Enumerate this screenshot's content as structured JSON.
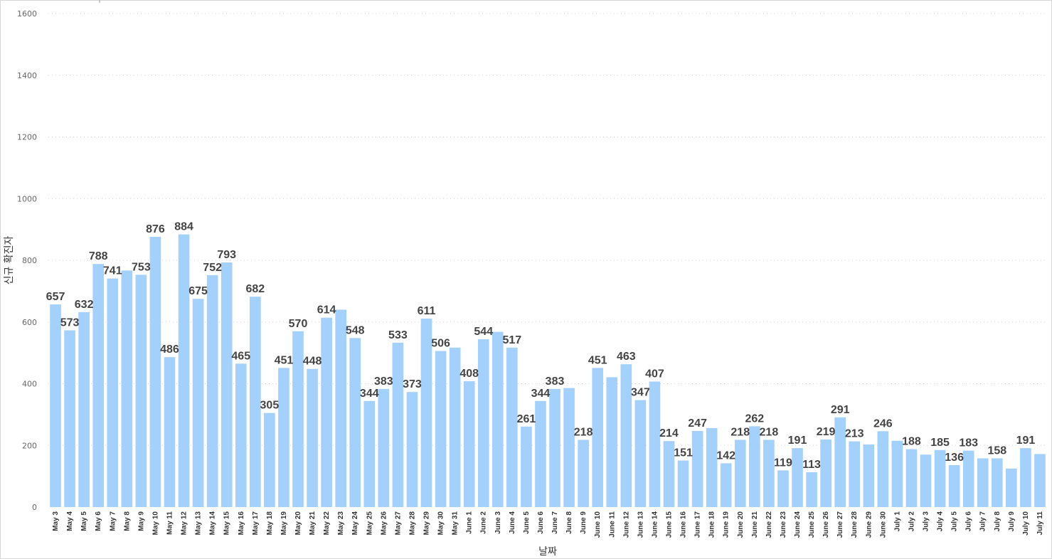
{
  "chart_data": {
    "type": "bar",
    "title": "",
    "xlabel": "날짜",
    "ylabel": "신규 확진자",
    "ylim": [
      0,
      1600
    ],
    "yticks": [
      0,
      200,
      400,
      600,
      800,
      1000,
      1200,
      1400,
      1600
    ],
    "grid": true,
    "colors": {
      "bar": "#a3d1fc",
      "highlight": "#1a8cff"
    },
    "highlight_index": 70,
    "categories": [
      "May 3",
      "May 4",
      "May 5",
      "May 6",
      "May 7",
      "May 8",
      "May 9",
      "May 10",
      "May 11",
      "May 12",
      "May 13",
      "May 14",
      "May 15",
      "May 16",
      "May 17",
      "May 18",
      "May 19",
      "May 20",
      "May 21",
      "May 22",
      "May 23",
      "May 24",
      "May 25",
      "May 26",
      "May 27",
      "May 28",
      "May 29",
      "May 30",
      "May 31",
      "June 1",
      "June 2",
      "June 3",
      "June 4",
      "June 5",
      "June 6",
      "June 7",
      "June 8",
      "June 9",
      "June 10",
      "June 11",
      "June 12",
      "June 13",
      "June 14",
      "June 15",
      "June 16",
      "June 17",
      "June 18",
      "June 19",
      "June 20",
      "June 21",
      "June 22",
      "June 23",
      "June 24",
      "June 25",
      "June 26",
      "June 27",
      "June 28",
      "June 29",
      "June 30",
      "July 1",
      "July 2",
      "July 3",
      "July 4",
      "July 5",
      "July 6",
      "July 7",
      "July 8",
      "July 9",
      "July 10",
      "July 11"
    ],
    "values": [
      657,
      573,
      632,
      788,
      741,
      767,
      753,
      876,
      486,
      884,
      675,
      752,
      793,
      465,
      682,
      305,
      451,
      570,
      448,
      614,
      640,
      548,
      344,
      383,
      533,
      373,
      611,
      506,
      517,
      408,
      544,
      568,
      517,
      261,
      344,
      383,
      386,
      218,
      451,
      421,
      463,
      347,
      407,
      214,
      151,
      247,
      256,
      142,
      218,
      262,
      218,
      119,
      191,
      113,
      219,
      291,
      213,
      203,
      246,
      215,
      188,
      170,
      185,
      136,
      183,
      158,
      158,
      125,
      191,
      172
    ],
    "data_labels": [
      {
        "index": 0,
        "text": "657"
      },
      {
        "index": 1,
        "text": "573"
      },
      {
        "index": 2,
        "text": "632"
      },
      {
        "index": 3,
        "text": "788"
      },
      {
        "index": 4,
        "text": "741"
      },
      {
        "index": 6,
        "text": "753"
      },
      {
        "index": 7,
        "text": "876"
      },
      {
        "index": 8,
        "text": "486"
      },
      {
        "index": 9,
        "text": "884"
      },
      {
        "index": 10,
        "text": "675"
      },
      {
        "index": 11,
        "text": "752"
      },
      {
        "index": 12,
        "text": "793"
      },
      {
        "index": 13,
        "text": "465"
      },
      {
        "index": 14,
        "text": "682"
      },
      {
        "index": 15,
        "text": "305"
      },
      {
        "index": 16,
        "text": "451"
      },
      {
        "index": 17,
        "text": "570"
      },
      {
        "index": 18,
        "text": "448"
      },
      {
        "index": 19,
        "text": "614"
      },
      {
        "index": 21,
        "text": "548"
      },
      {
        "index": 22,
        "text": "344"
      },
      {
        "index": 23,
        "text": "383"
      },
      {
        "index": 24,
        "text": "533"
      },
      {
        "index": 25,
        "text": "373"
      },
      {
        "index": 26,
        "text": "611"
      },
      {
        "index": 27,
        "text": "506"
      },
      {
        "index": 29,
        "text": "408"
      },
      {
        "index": 30,
        "text": "544"
      },
      {
        "index": 32,
        "text": "517"
      },
      {
        "index": 33,
        "text": "261"
      },
      {
        "index": 34,
        "text": "344"
      },
      {
        "index": 35,
        "text": "383"
      },
      {
        "index": 37,
        "text": "218"
      },
      {
        "index": 38,
        "text": "451"
      },
      {
        "index": 40,
        "text": "463"
      },
      {
        "index": 41,
        "text": "347"
      },
      {
        "index": 42,
        "text": "407"
      },
      {
        "index": 43,
        "text": "214"
      },
      {
        "index": 44,
        "text": "151"
      },
      {
        "index": 45,
        "text": "247"
      },
      {
        "index": 47,
        "text": "142"
      },
      {
        "index": 48,
        "text": "218"
      },
      {
        "index": 49,
        "text": "262"
      },
      {
        "index": 50,
        "text": "218"
      },
      {
        "index": 51,
        "text": "119"
      },
      {
        "index": 52,
        "text": "191"
      },
      {
        "index": 53,
        "text": "113"
      },
      {
        "index": 54,
        "text": "219"
      },
      {
        "index": 55,
        "text": "291"
      },
      {
        "index": 56,
        "text": "213"
      },
      {
        "index": 58,
        "text": "246"
      },
      {
        "index": 60,
        "text": "188"
      },
      {
        "index": 62,
        "text": "185"
      },
      {
        "index": 63,
        "text": "136"
      },
      {
        "index": 64,
        "text": "183"
      },
      {
        "index": 66,
        "text": "158"
      },
      {
        "index": 68,
        "text": "191"
      }
    ]
  }
}
